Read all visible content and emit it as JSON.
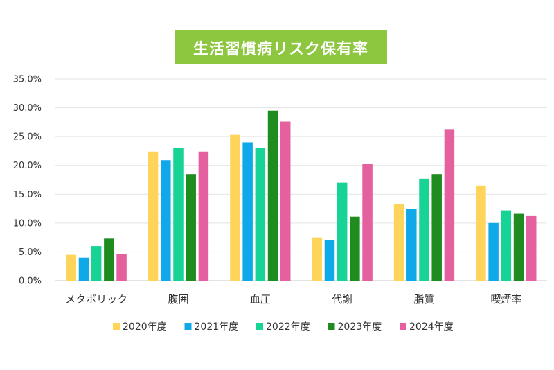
{
  "chart_data": {
    "type": "bar",
    "title": "生活習慣病リスク保有率",
    "categories": [
      "メタボリック",
      "腹囲",
      "血圧",
      "代謝",
      "脂質",
      "喫煙率"
    ],
    "series": [
      {
        "name": "2020年度",
        "color": "#ffd45b",
        "values": [
          4.5,
          22.4,
          25.3,
          7.5,
          13.3,
          16.5
        ]
      },
      {
        "name": "2021年度",
        "color": "#0fa8e8",
        "values": [
          4.0,
          20.9,
          24.0,
          7.0,
          12.5,
          10.0
        ]
      },
      {
        "name": "2022年度",
        "color": "#17d396",
        "values": [
          6.0,
          23.0,
          23.0,
          17.0,
          17.7,
          12.2
        ]
      },
      {
        "name": "2023年度",
        "color": "#1f8c1f",
        "values": [
          7.3,
          18.5,
          29.5,
          11.1,
          18.5,
          11.6
        ]
      },
      {
        "name": "2024年度",
        "color": "#e4609f",
        "values": [
          4.6,
          22.4,
          27.6,
          20.3,
          26.3,
          11.2
        ]
      }
    ],
    "ylim": [
      0,
      35
    ],
    "yticks": [
      "0.0%",
      "5.0%",
      "10.0%",
      "15.0%",
      "20.0%",
      "25.0%",
      "30.0%",
      "35.0%"
    ],
    "grid": true,
    "legend": "bottom"
  }
}
